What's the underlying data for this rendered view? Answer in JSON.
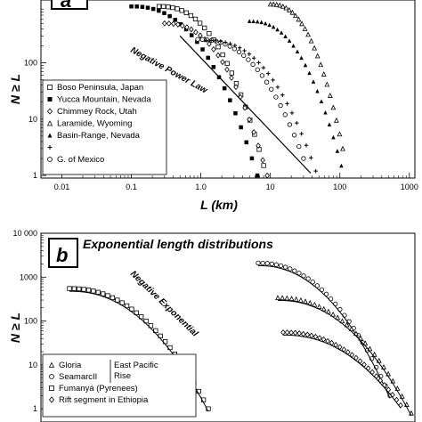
{
  "chart_data": [
    {
      "type": "scatter",
      "panel_label": "a",
      "xlabel": "L (km)",
      "ylabel": "N ≥ L",
      "xscale": "log",
      "yscale": "log",
      "xlim": [
        0.005,
        1200
      ],
      "ylim": [
        0.9,
        1300
      ],
      "xticks": [
        {
          "v": 0.01,
          "label": "0.01"
        },
        {
          "v": 0.1,
          "label": "0.1"
        },
        {
          "v": 1,
          "label": "1.0"
        },
        {
          "v": 10,
          "label": "10"
        },
        {
          "v": 100,
          "label": "100"
        },
        {
          "v": 1000,
          "label": "1000"
        }
      ],
      "yticks": [
        {
          "v": 1,
          "label": "1"
        },
        {
          "v": 10,
          "label": "10"
        },
        {
          "v": 100,
          "label": "100"
        }
      ],
      "annotation": "Negative Power Law",
      "legend_position": "bottom-left",
      "legend": [
        {
          "symbol": "square-open",
          "label": "Boso Peninsula, Japan"
        },
        {
          "symbol": "square-filled",
          "label": "Yucca Mountain, Nevada"
        },
        {
          "symbol": "diamond-open",
          "label": "Chimmey Rock, Utah"
        },
        {
          "symbol": "triangle-open",
          "label": "Laramide, Wyoming"
        },
        {
          "symbol": "triangle-filled",
          "label": "Basin-Range, Nevada"
        },
        {
          "symbol": "plus",
          "label": ""
        },
        {
          "symbol": "circle-open",
          "label": "G. of Mexico"
        }
      ],
      "series": [
        {
          "symbol": "square-filled",
          "x0": 0.1,
          "x1": 6.5,
          "n0": 1000,
          "n1": 1
        },
        {
          "symbol": "square-open",
          "x0": 0.25,
          "x1": 8,
          "n0": 1000,
          "n1": 1.5
        },
        {
          "symbol": "diamond-open",
          "x0": 0.3,
          "x1": 9,
          "n0": 500,
          "n1": 1
        },
        {
          "symbol": "circle-open",
          "x0": 0.9,
          "x1": 30,
          "n0": 260,
          "n1": 2
        },
        {
          "symbol": "plus",
          "x0": 1.2,
          "x1": 45,
          "n0": 250,
          "n1": 1.2
        },
        {
          "symbol": "triangle-filled",
          "x0": 5,
          "x1": 105,
          "n0": 550,
          "n1": 1.5
        },
        {
          "symbol": "triangle-open",
          "x0": 10,
          "x1": 110,
          "n0": 1100,
          "n1": 3
        }
      ],
      "fit_line": [
        [
          0.5,
          300
        ],
        [
          38,
          1.1
        ]
      ]
    },
    {
      "type": "scatter",
      "panel_label": "b",
      "title": "Exponential length distributions",
      "ylabel": "N ≥ L",
      "yscale": "log",
      "ylim": [
        0.5,
        10000
      ],
      "yticks": [
        {
          "v": 1,
          "label": "1"
        },
        {
          "v": 10,
          "label": "10"
        },
        {
          "v": 100,
          "label": "100"
        },
        {
          "v": 1000,
          "label": "1000"
        },
        {
          "v": 10000,
          "label": "10 000"
        }
      ],
      "annotation": "Negative Exponential",
      "legend_position": "bottom-left",
      "legend": [
        {
          "symbol": "triangle-open",
          "label": "Gloria"
        },
        {
          "symbol": "circle-open",
          "label": "SeamarcII"
        },
        {
          "symbol": "square-open",
          "label": "Fumanyá (Pyrenees)"
        },
        {
          "symbol": "diamond-open",
          "label": "Rift segment in Ethiopia"
        }
      ],
      "legend_group_label": [
        "East Pacific",
        "Rise"
      ]
    }
  ]
}
